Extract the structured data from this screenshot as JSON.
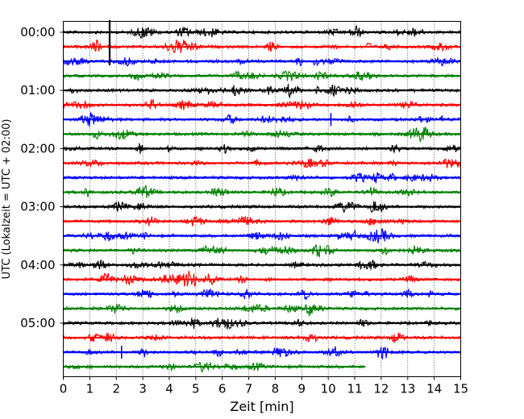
{
  "chart_data": {
    "type": "line",
    "title": "",
    "xlabel": "Zeit  [min]",
    "ylabel": "UTC (Lokalzeit = UTC + 02:00)",
    "xlim": [
      0,
      15
    ],
    "x_ticks": [
      "0",
      "1",
      "2",
      "3",
      "4",
      "5",
      "6",
      "7",
      "8",
      "9",
      "10",
      "11",
      "12",
      "13",
      "14",
      "15"
    ],
    "y_ticks": [
      "00:00",
      "01:00",
      "02:00",
      "03:00",
      "04:00",
      "05:00"
    ],
    "vertical_grid": true,
    "grid_style": "dotted",
    "trace_interval_min": 15,
    "trace_colors": [
      "#000000",
      "#ff0000",
      "#0000ff",
      "#008000"
    ],
    "traces_per_hour": 4,
    "series": [
      {
        "start_utc": "00:00",
        "color": "#000000",
        "duration_min": 15
      },
      {
        "start_utc": "00:15",
        "color": "#ff0000",
        "duration_min": 15
      },
      {
        "start_utc": "00:30",
        "color": "#0000ff",
        "duration_min": 15
      },
      {
        "start_utc": "00:45",
        "color": "#008000",
        "duration_min": 15
      },
      {
        "start_utc": "01:00",
        "color": "#000000",
        "duration_min": 15
      },
      {
        "start_utc": "01:15",
        "color": "#ff0000",
        "duration_min": 15
      },
      {
        "start_utc": "01:30",
        "color": "#0000ff",
        "duration_min": 15
      },
      {
        "start_utc": "01:45",
        "color": "#008000",
        "duration_min": 15
      },
      {
        "start_utc": "02:00",
        "color": "#000000",
        "duration_min": 15
      },
      {
        "start_utc": "02:15",
        "color": "#ff0000",
        "duration_min": 15
      },
      {
        "start_utc": "02:30",
        "color": "#0000ff",
        "duration_min": 15
      },
      {
        "start_utc": "02:45",
        "color": "#008000",
        "duration_min": 15
      },
      {
        "start_utc": "03:00",
        "color": "#000000",
        "duration_min": 15
      },
      {
        "start_utc": "03:15",
        "color": "#ff0000",
        "duration_min": 15
      },
      {
        "start_utc": "03:30",
        "color": "#0000ff",
        "duration_min": 15
      },
      {
        "start_utc": "03:45",
        "color": "#008000",
        "duration_min": 15
      },
      {
        "start_utc": "04:00",
        "color": "#000000",
        "duration_min": 15
      },
      {
        "start_utc": "04:15",
        "color": "#ff0000",
        "duration_min": 15
      },
      {
        "start_utc": "04:30",
        "color": "#0000ff",
        "duration_min": 15
      },
      {
        "start_utc": "04:45",
        "color": "#008000",
        "duration_min": 15
      },
      {
        "start_utc": "05:00",
        "color": "#000000",
        "duration_min": 15
      },
      {
        "start_utc": "05:15",
        "color": "#ff0000",
        "duration_min": 15
      },
      {
        "start_utc": "05:30",
        "color": "#0000ff",
        "duration_min": 15
      },
      {
        "start_utc": "05:45",
        "color": "#008000",
        "duration_min": 11.4
      }
    ],
    "events": [
      {
        "trace_start_utc": "00:00",
        "minute": 1.75,
        "note": "large spike extending across neighbouring traces"
      },
      {
        "trace_start_utc": "01:30",
        "minute": 10.1,
        "note": "distinct burst"
      },
      {
        "trace_start_utc": "05:30",
        "minute": 2.2,
        "note": "distinct burst"
      }
    ]
  }
}
